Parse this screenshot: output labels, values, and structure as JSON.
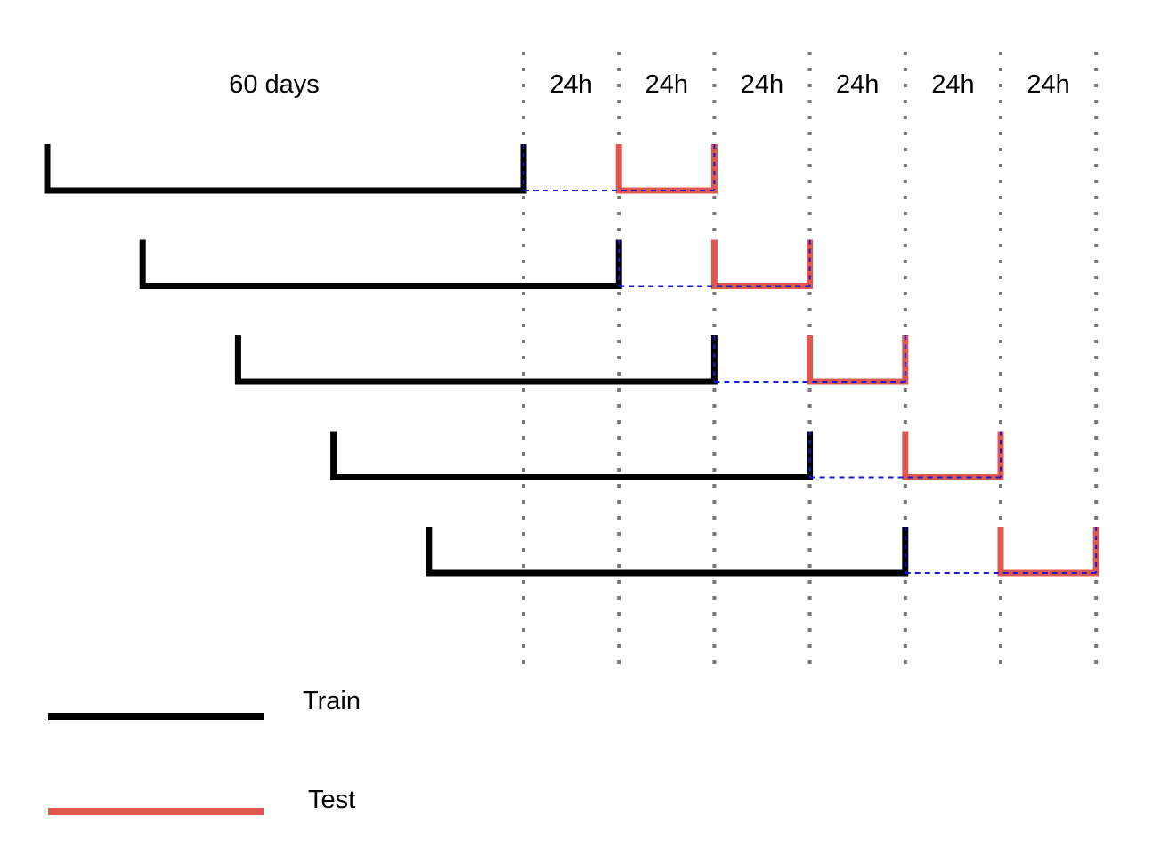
{
  "header": {
    "train_window_label": "60 days",
    "slot_labels": [
      "24h",
      "24h",
      "24h",
      "24h",
      "24h",
      "24h"
    ]
  },
  "folds": [
    {
      "train_end_slot": 0,
      "test_start_slot": 1,
      "test_end_slot": 2
    },
    {
      "train_end_slot": 1,
      "test_start_slot": 2,
      "test_end_slot": 3
    },
    {
      "train_end_slot": 2,
      "test_start_slot": 3,
      "test_end_slot": 4
    },
    {
      "train_end_slot": 3,
      "test_start_slot": 4,
      "test_end_slot": 5
    },
    {
      "train_end_slot": 4,
      "test_start_slot": 5,
      "test_end_slot": 6
    }
  ],
  "legend": {
    "train_label": "Train",
    "test_label": "Test"
  },
  "colors": {
    "train": "#000000",
    "test": "#e0584d",
    "gap": "#1a1ad6",
    "grid": "#777777"
  }
}
